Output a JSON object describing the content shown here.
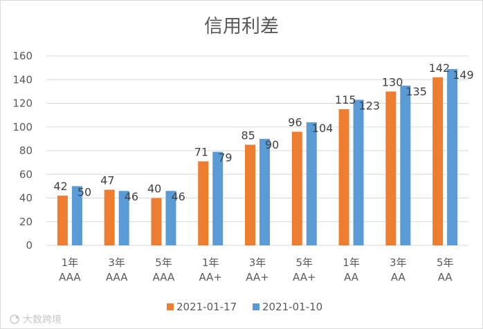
{
  "watermark": "大数跨境",
  "chart_data": {
    "type": "bar",
    "title": "信用利差",
    "xlabel": "",
    "ylabel": "",
    "categories": [
      [
        "1年",
        "AAA"
      ],
      [
        "3年",
        "AAA"
      ],
      [
        "5年",
        "AAA"
      ],
      [
        "1年",
        "AA+"
      ],
      [
        "3年",
        "AA+"
      ],
      [
        "5年",
        "AA+"
      ],
      [
        "1年",
        "AA"
      ],
      [
        "3年",
        "AA"
      ],
      [
        "5年",
        "AA"
      ]
    ],
    "series": [
      {
        "name": "2021-01-17",
        "color": "#ED7D31",
        "values": [
          42,
          47,
          40,
          71,
          85,
          96,
          115,
          130,
          142
        ]
      },
      {
        "name": "2021-01-10",
        "color": "#5B9BD5",
        "values": [
          50,
          46,
          46,
          79,
          90,
          104,
          123,
          135,
          149
        ]
      }
    ],
    "ylim": [
      0,
      160
    ],
    "yticks": [
      0,
      20,
      40,
      60,
      80,
      100,
      120,
      140,
      160
    ],
    "grid": true,
    "legend_position": "bottom"
  }
}
